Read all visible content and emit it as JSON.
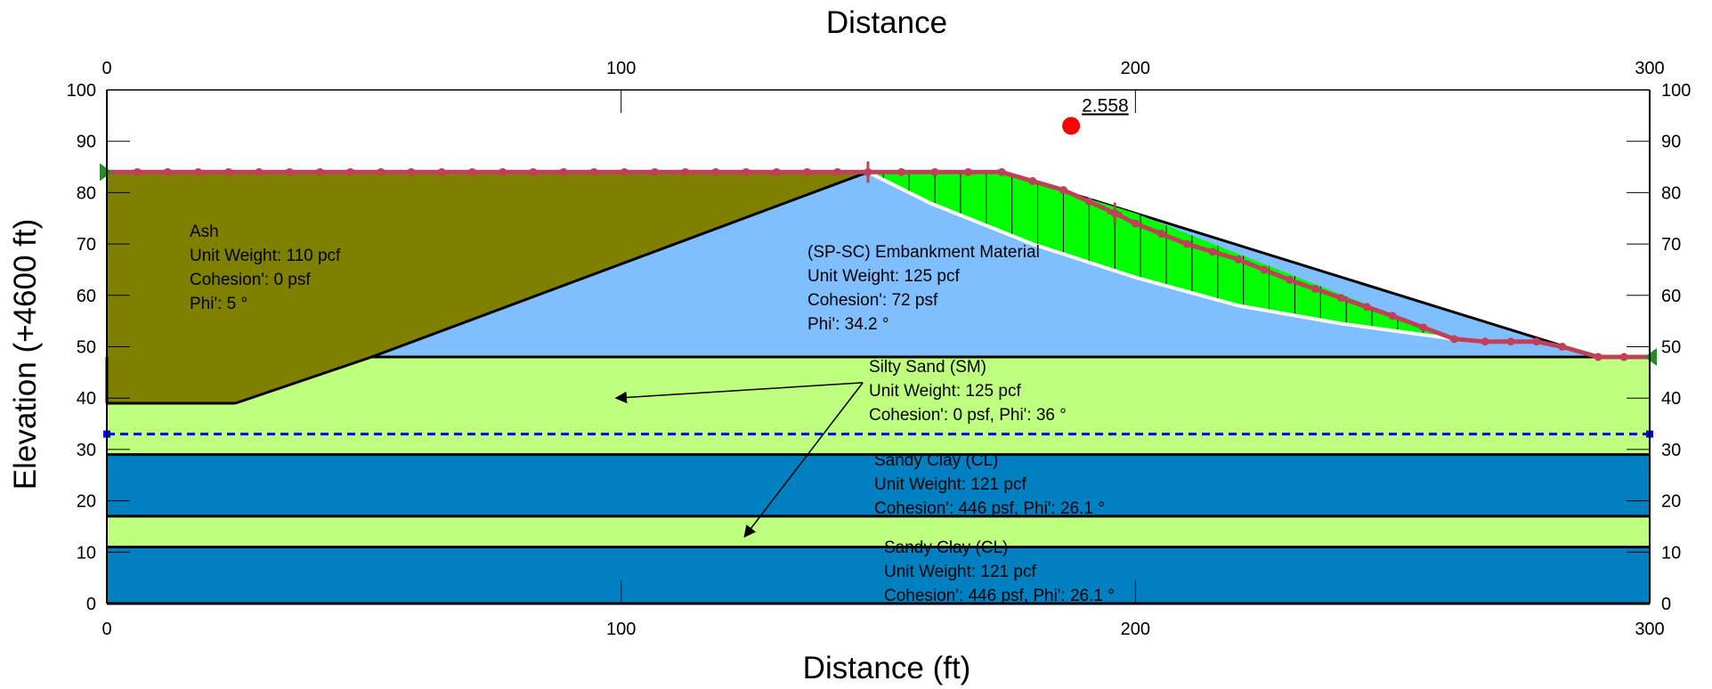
{
  "axes": {
    "top_title": "Distance",
    "bottom_title": "Distance (ft)",
    "left_title": "Elevation (+4600 ft)",
    "x_ticks": [
      "0",
      "100",
      "200",
      "300"
    ],
    "y_ticks": [
      "0",
      "10",
      "20",
      "30",
      "40",
      "50",
      "60",
      "70",
      "80",
      "90",
      "100"
    ],
    "x_range": [
      0,
      300
    ],
    "y_range": [
      0,
      100
    ]
  },
  "factor_of_safety": {
    "label": "2.558",
    "center": {
      "x": 187.5,
      "y": 93.0
    },
    "color": "#ff0000"
  },
  "materials": [
    {
      "id": "ash",
      "color": "#808000",
      "lines": [
        "Ash",
        "Unit Weight: 110 pcf",
        "Cohesion': 0 psf",
        "Phi': 5 °"
      ]
    },
    {
      "id": "embankment",
      "color": "#80bfff",
      "lines": [
        "(SP-SC) Embankment Material",
        "Unit Weight: 125 pcf",
        "Cohesion': 72 psf",
        "Phi': 34.2 °"
      ]
    },
    {
      "id": "silty-sand",
      "color": "#bfff80",
      "lines": [
        "Silty Sand (SM)",
        "Unit Weight: 125 pcf",
        "Cohesion': 0 psf, Phi': 36 °"
      ]
    },
    {
      "id": "sandy-clay-upper",
      "color": "#0080c0",
      "lines": [
        "Sandy Clay (CL)",
        "Unit Weight: 121 pcf",
        "Cohesion': 446 psf, Phi': 26.1 °"
      ]
    },
    {
      "id": "sandy-clay-lower",
      "color": "#0080c0",
      "lines": [
        "Sandy Clay (CL)",
        "Unit Weight: 121 pcf",
        "Cohesion': 446 psf, Phi': 26.1 °"
      ]
    }
  ],
  "geometry": {
    "ground_surface": [
      [
        0,
        84
      ],
      [
        148,
        84
      ],
      [
        174,
        84
      ],
      [
        200,
        76
      ],
      [
        290,
        48
      ],
      [
        300,
        48
      ]
    ],
    "ash_region": [
      [
        0,
        84
      ],
      [
        148,
        84
      ],
      [
        51.5,
        48
      ],
      [
        25,
        39
      ],
      [
        0,
        39
      ]
    ],
    "embankment_region": [
      [
        51.5,
        48
      ],
      [
        148,
        84
      ],
      [
        174,
        84
      ],
      [
        200,
        76
      ],
      [
        290,
        48
      ]
    ],
    "silty_sand_top": 48,
    "silty_sand_bottom": 29,
    "ash_base": 39,
    "clay_upper": [
      17,
      29
    ],
    "sand_lower": [
      11,
      17
    ],
    "clay_lower": [
      0,
      11
    ],
    "water_table": 33,
    "slip_surface": [
      [
        148,
        84
      ],
      [
        160,
        78
      ],
      [
        180,
        70
      ],
      [
        200,
        63.5
      ],
      [
        220,
        58
      ],
      [
        240,
        54.5
      ],
      [
        262,
        51.5
      ],
      [
        270,
        51
      ]
    ],
    "sliding_mass_top": [
      [
        148,
        84
      ],
      [
        174,
        84
      ],
      [
        200,
        76
      ],
      [
        262,
        51.5
      ]
    ],
    "search_profile": [
      [
        0,
        84
      ],
      [
        148,
        84
      ],
      [
        174,
        84
      ],
      [
        186,
        80.5
      ],
      [
        196,
        76
      ],
      [
        200,
        74
      ],
      [
        210,
        70
      ],
      [
        220,
        67
      ],
      [
        230,
        63
      ],
      [
        240,
        59.5
      ],
      [
        250,
        56
      ],
      [
        262,
        51.5
      ],
      [
        268,
        51
      ],
      [
        278,
        51
      ],
      [
        283,
        50
      ],
      [
        290,
        48
      ],
      [
        300,
        48
      ]
    ],
    "profile_marker_spacing": 6,
    "leader_from": [
      147,
      43
    ],
    "leader_arrows_to": [
      [
        99,
        40
      ],
      [
        124,
        13
      ]
    ],
    "colors": {
      "boundary": "#000000",
      "slip_surface": "#ffffff",
      "sliding_mass": "#00ff00",
      "search_line": "#c0405a",
      "water_table": "#0000ff",
      "endpoint_marker": "#2a8a2a"
    }
  }
}
